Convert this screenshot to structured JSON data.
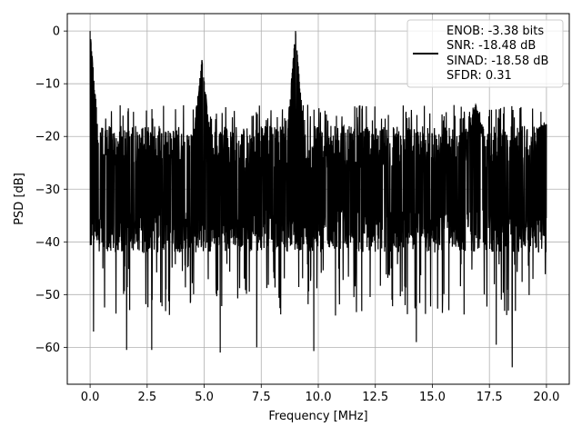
{
  "chart_data": {
    "type": "line",
    "xlabel": "Frequency [MHz]",
    "ylabel": "PSD [dB]",
    "xlim": [
      -1.0,
      21.0
    ],
    "ylim": [
      -67,
      3.3
    ],
    "x_ticks": [
      0.0,
      2.5,
      5.0,
      7.5,
      10.0,
      12.5,
      15.0,
      17.5,
      20.0
    ],
    "x_tick_labels": [
      "0.0",
      "2.5",
      "5.0",
      "7.5",
      "10.0",
      "12.5",
      "15.0",
      "17.5",
      "20.0"
    ],
    "y_ticks": [
      0,
      -10,
      -20,
      -30,
      -40,
      -50,
      -60
    ],
    "y_tick_labels": [
      "0",
      "−10",
      "−20",
      "−30",
      "−40",
      "−50",
      "−60"
    ],
    "grid": true,
    "legend_position": "top-right",
    "legend_lines": [
      "ENOB: -3.38 bits",
      "SNR: -18.48 dB",
      "SINAD: -18.58 dB",
      "SFDR: 0.31"
    ],
    "line_color": "#000000",
    "series": [
      {
        "name": "",
        "peaks": [
          {
            "x": 0.0,
            "y": 0.0
          },
          {
            "x": 4.9,
            "y": -5.5
          },
          {
            "x": 9.0,
            "y": 0.0
          },
          {
            "x": 16.9,
            "y": -14.0
          },
          {
            "x": 19.9,
            "y": -17.5
          }
        ],
        "typical_band_top": -18,
        "typical_band_bottom": -42,
        "deep_minima": [
          {
            "x": 0.15,
            "y": -57.0
          },
          {
            "x": 1.6,
            "y": -60.5
          },
          {
            "x": 2.7,
            "y": -60.5
          },
          {
            "x": 5.7,
            "y": -61.0
          },
          {
            "x": 7.3,
            "y": -60.0
          },
          {
            "x": 9.8,
            "y": -60.7
          },
          {
            "x": 14.3,
            "y": -59.0
          },
          {
            "x": 17.8,
            "y": -59.5
          },
          {
            "x": 18.5,
            "y": -63.8
          }
        ]
      }
    ]
  }
}
